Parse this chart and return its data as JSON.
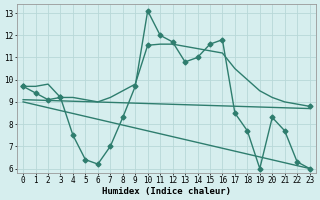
{
  "line1_x": [
    0,
    1,
    2,
    3,
    4,
    5,
    6,
    7,
    8,
    9,
    10,
    11,
    12,
    13,
    14,
    15,
    16,
    17,
    18,
    19,
    20,
    21,
    22,
    23
  ],
  "line1_y": [
    9.7,
    9.4,
    9.1,
    9.2,
    7.5,
    6.4,
    6.2,
    7.0,
    8.3,
    9.7,
    13.1,
    12.0,
    11.7,
    10.8,
    11.0,
    11.6,
    11.8,
    8.5,
    7.7,
    6.0,
    8.3,
    7.7,
    6.3,
    6.0
  ],
  "line2_x": [
    0,
    1,
    2,
    3,
    4,
    5,
    6,
    7,
    8,
    9,
    10,
    11,
    12,
    13,
    14,
    15,
    16,
    17,
    18,
    19,
    20,
    21,
    22,
    23
  ],
  "line2_y": [
    9.7,
    9.7,
    9.8,
    9.2,
    9.2,
    9.1,
    9.0,
    9.2,
    9.5,
    9.8,
    11.55,
    11.6,
    11.6,
    11.5,
    11.4,
    11.3,
    11.2,
    10.5,
    10.0,
    9.5,
    9.2,
    9.0,
    8.9,
    8.8
  ],
  "line3_x": [
    0,
    23
  ],
  "line3_y": [
    9.1,
    8.7
  ],
  "line4_x": [
    0,
    23
  ],
  "line4_y": [
    9.0,
    6.0
  ],
  "color": "#2e7d6e",
  "bg_color": "#d6eeee",
  "grid_color": "#b8d8d8",
  "xlabel": "Humidex (Indice chaleur)",
  "xlim_min": -0.5,
  "xlim_max": 23.5,
  "ylim_min": 5.8,
  "ylim_max": 13.4,
  "yticks": [
    6,
    7,
    8,
    9,
    10,
    11,
    12,
    13
  ],
  "xticks": [
    0,
    1,
    2,
    3,
    4,
    5,
    6,
    7,
    8,
    9,
    10,
    11,
    12,
    13,
    14,
    15,
    16,
    17,
    18,
    19,
    20,
    21,
    22,
    23
  ],
  "label_fontsize": 6.5,
  "tick_fontsize": 5.5,
  "marker_size": 2.5,
  "linewidth": 1.0
}
